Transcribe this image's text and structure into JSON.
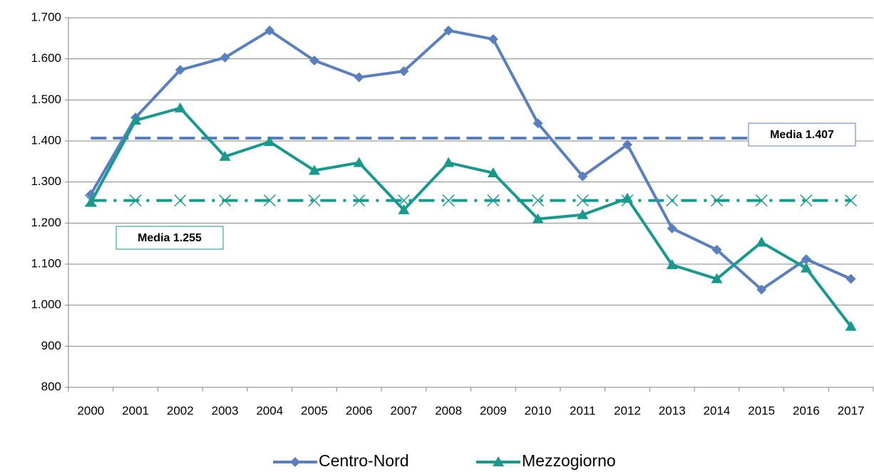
{
  "chart_data": {
    "type": "line",
    "categories": [
      "2000",
      "2001",
      "2002",
      "2003",
      "2004",
      "2005",
      "2006",
      "2007",
      "2008",
      "2009",
      "2010",
      "2011",
      "2012",
      "2013",
      "2014",
      "2015",
      "2016",
      "2017"
    ],
    "series": [
      {
        "name": "Centro-Nord",
        "color": "#5a7fbf",
        "marker": "diamond",
        "values": [
          1270,
          1457,
          1573,
          1603,
          1669,
          1596,
          1555,
          1570,
          1669,
          1648,
          1443,
          1314,
          1391,
          1187,
          1135,
          1038,
          1112,
          1064
        ]
      },
      {
        "name": "Mezzogiorno",
        "color": "#18998e",
        "marker": "triangle",
        "values": [
          1250,
          1450,
          1480,
          1362,
          1398,
          1328,
          1347,
          1232,
          1347,
          1322,
          1210,
          1220,
          1260,
          1098,
          1064,
          1153,
          1090,
          948
        ]
      }
    ],
    "reference_lines": [
      {
        "value": 1407,
        "label": "Media 1.407",
        "color": "#5a7fbf",
        "style": "dashed"
      },
      {
        "value": 1255,
        "label": "Media 1.255",
        "color": "#18998e",
        "style": "dash-dot-x"
      }
    ],
    "ylim": [
      800,
      1700
    ],
    "yticks": [
      800,
      900,
      {
        "value": 1000,
        "label": "1.000"
      },
      {
        "value": 1100,
        "label": "1.100"
      },
      {
        "value": 1200,
        "label": "1.200"
      },
      {
        "value": 1300,
        "label": "1.300"
      },
      {
        "value": 1400,
        "label": "1.400"
      },
      {
        "value": 1500,
        "label": "1.500"
      },
      {
        "value": 1600,
        "label": "1.600"
      },
      {
        "value": 1700,
        "label": "1.700"
      }
    ],
    "grid": true,
    "legend": "bottom"
  }
}
